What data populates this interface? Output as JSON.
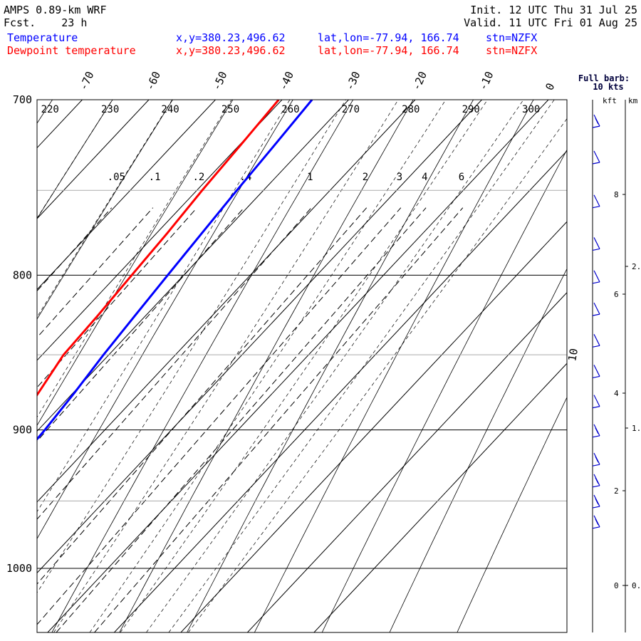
{
  "header": {
    "model": "AMPS 0.89-km WRF",
    "fcst_label": "Fcst.",
    "fcst_value": "23 h",
    "init": "Init. 12 UTC Thu 31 Jul 25",
    "valid": "Valid. 11 UTC Fri 01 Aug 25",
    "lines": [
      {
        "name": "Temperature",
        "xy": "x,y=380.23,496.62",
        "latlon": "lat,lon=-77.94, 166.74",
        "stn": "stn=NZFX",
        "color": "#0000ff"
      },
      {
        "name": "Dewpoint temperature",
        "xy": "x,y=380.23,496.62",
        "latlon": "lat,lon=-77.94, 166.74",
        "stn": "stn=NZFX",
        "color": "#ff0000"
      }
    ]
  },
  "barb_legend": {
    "line1": "Full barb:",
    "line2": "10 kts"
  },
  "height_axis": {
    "kft_label": "kft",
    "km_label": "km",
    "kft_ticks": [
      "8",
      "6",
      "4",
      "2",
      "0"
    ],
    "km_ticks": [
      "2.",
      "1.",
      "0."
    ]
  },
  "chart_data": {
    "type": "line",
    "chart_kind": "skew-T log-P",
    "pressure_range": [
      1050,
      700
    ],
    "pressure_labels": [
      "700",
      "800",
      "900",
      "1000"
    ],
    "pressure_gridlines": [
      750,
      850,
      950
    ],
    "isotherm_labels": [
      "-70",
      "-60",
      "-50",
      "-40",
      "-30",
      "-20",
      "-10",
      "0"
    ],
    "isotherm_label_10": "10",
    "theta_labels": [
      "220",
      "230",
      "240",
      "250",
      "260",
      "270",
      "280",
      "290",
      "300"
    ],
    "mixing_ratio_labels": [
      ".05",
      ".1",
      ".2",
      ".4",
      "1",
      "2",
      "3",
      "4",
      "6"
    ],
    "series": [
      {
        "name": "Temperature",
        "color": "#0000ff",
        "points": [
          [
            968,
            -28
          ],
          [
            950,
            -28.2
          ],
          [
            925,
            -28.5
          ],
          [
            900,
            -29
          ],
          [
            875,
            -29.8
          ],
          [
            850,
            -30.8
          ],
          [
            825,
            -31.6
          ],
          [
            800,
            -32.4
          ],
          [
            775,
            -33.2
          ],
          [
            750,
            -34
          ],
          [
            725,
            -34.7
          ],
          [
            700,
            -35.5
          ]
        ]
      },
      {
        "name": "Dewpoint temperature",
        "color": "#ff0000",
        "points": [
          [
            968,
            -32
          ],
          [
            950,
            -32
          ],
          [
            925,
            -32.8
          ],
          [
            900,
            -33.8
          ],
          [
            875,
            -35.2
          ],
          [
            850,
            -36.8
          ],
          [
            825,
            -37.2
          ],
          [
            800,
            -37.8
          ],
          [
            775,
            -38.4
          ],
          [
            750,
            -39.2
          ],
          [
            725,
            -39.8
          ],
          [
            700,
            -40.5
          ]
        ]
      }
    ],
    "wind_barbs": [
      {
        "p": 970,
        "speed_kt": 15,
        "dir_deg": 90
      },
      {
        "p": 955,
        "speed_kt": 15,
        "dir_deg": 88
      },
      {
        "p": 940,
        "speed_kt": 15,
        "dir_deg": 85
      },
      {
        "p": 925,
        "speed_kt": 15,
        "dir_deg": 82
      },
      {
        "p": 905,
        "speed_kt": 15,
        "dir_deg": 80
      },
      {
        "p": 885,
        "speed_kt": 10,
        "dir_deg": 78
      },
      {
        "p": 865,
        "speed_kt": 10,
        "dir_deg": 75
      },
      {
        "p": 845,
        "speed_kt": 10,
        "dir_deg": 72
      },
      {
        "p": 825,
        "speed_kt": 10,
        "dir_deg": 70
      },
      {
        "p": 805,
        "speed_kt": 10,
        "dir_deg": 70
      },
      {
        "p": 785,
        "speed_kt": 10,
        "dir_deg": 72
      },
      {
        "p": 760,
        "speed_kt": 10,
        "dir_deg": 75
      },
      {
        "p": 735,
        "speed_kt": 10,
        "dir_deg": 78
      },
      {
        "p": 715,
        "speed_kt": 15,
        "dir_deg": 80
      }
    ]
  }
}
